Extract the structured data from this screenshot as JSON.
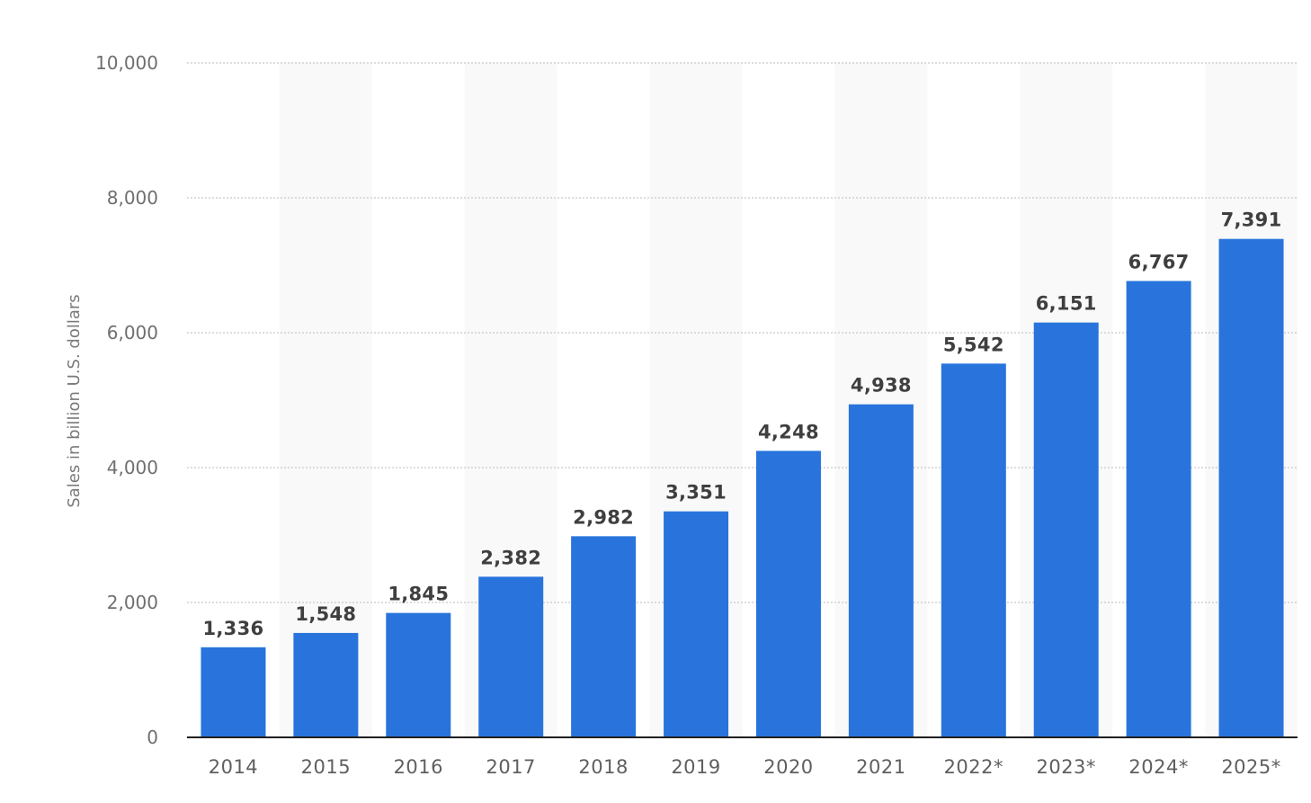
{
  "colors": {
    "bar": "#2874dc",
    "band": "#f9f9f9",
    "grid": "#c8c8c8"
  },
  "chart_data": {
    "type": "bar",
    "ylabel": "Sales in billion U.S. dollars",
    "xlabel": "",
    "title": "",
    "ylim": [
      0,
      10000
    ],
    "yticks": [
      0,
      2000,
      4000,
      6000,
      8000,
      10000
    ],
    "ytick_labels": [
      "0",
      "2,000",
      "4,000",
      "6,000",
      "8,000",
      "10,000"
    ],
    "grid": true,
    "categories": [
      "2014",
      "2015",
      "2016",
      "2017",
      "2018",
      "2019",
      "2020",
      "2021",
      "2022*",
      "2023*",
      "2024*",
      "2025*"
    ],
    "values": [
      1336,
      1548,
      1845,
      2382,
      2982,
      3351,
      4248,
      4938,
      5542,
      6151,
      6767,
      7391
    ],
    "value_labels": [
      "1,336",
      "1,548",
      "1,845",
      "2,382",
      "2,982",
      "3,351",
      "4,248",
      "4,938",
      "5,542",
      "6,151",
      "6,767",
      "7,391"
    ]
  }
}
